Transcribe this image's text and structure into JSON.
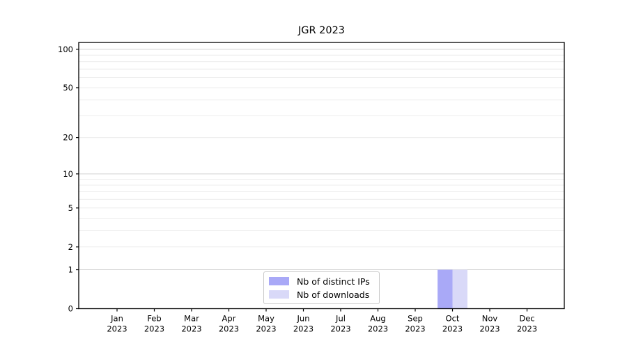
{
  "chart_data": {
    "type": "bar",
    "title": "JGR 2023",
    "categories": [
      "Jan",
      "Feb",
      "Mar",
      "Apr",
      "May",
      "Jun",
      "Jul",
      "Aug",
      "Sep",
      "Oct",
      "Nov",
      "Dec"
    ],
    "category_year": "2023",
    "series": [
      {
        "name": "Nb of distinct IPs",
        "color": "#a9a9f7",
        "values": [
          0,
          0,
          0,
          0,
          0,
          0,
          0,
          0,
          0,
          1,
          0,
          0
        ]
      },
      {
        "name": "Nb of downloads",
        "color": "#d9d9f8",
        "values": [
          0,
          0,
          0,
          0,
          0,
          0,
          0,
          0,
          0,
          1,
          0,
          0
        ]
      }
    ],
    "yscale": "log1p",
    "yticks": [
      0,
      1,
      2,
      5,
      10,
      20,
      50,
      100
    ],
    "ytick_labels": [
      "0",
      "1",
      "2",
      "5",
      "10",
      "20",
      "50",
      "100"
    ],
    "ylim": [
      0,
      113
    ],
    "grid": "horizontal",
    "grid_minor_color": "#ececec",
    "grid_major_color": "#d2d2d2",
    "axis_color": "#000000",
    "legend_position": "lower-center"
  }
}
